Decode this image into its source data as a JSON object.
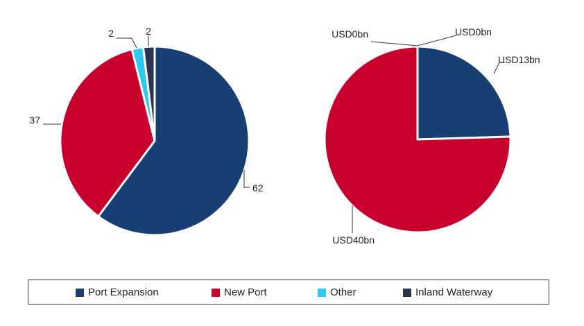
{
  "colors": {
    "Port Expansion": "#173f73",
    "New Port": "#c8002e",
    "Other": "#2ec9ef",
    "Inland Waterway": "#2a3350"
  },
  "legend": {
    "items": [
      "Port Expansion",
      "New Port",
      "Other",
      "Inland Waterway"
    ]
  },
  "chart_data": [
    {
      "type": "pie",
      "categories": [
        "Port Expansion",
        "New Port",
        "Other",
        "Inland Waterway"
      ],
      "values": [
        62,
        37,
        2,
        2
      ],
      "labels": [
        "62",
        "37",
        "2",
        "2"
      ]
    },
    {
      "type": "pie",
      "categories": [
        "Port Expansion",
        "New Port",
        "Other",
        "Inland Waterway"
      ],
      "values": [
        13,
        40,
        0,
        0
      ],
      "labels": [
        "USD13bn",
        "USD40bn",
        "USD0bn",
        "USD0bn"
      ]
    }
  ]
}
